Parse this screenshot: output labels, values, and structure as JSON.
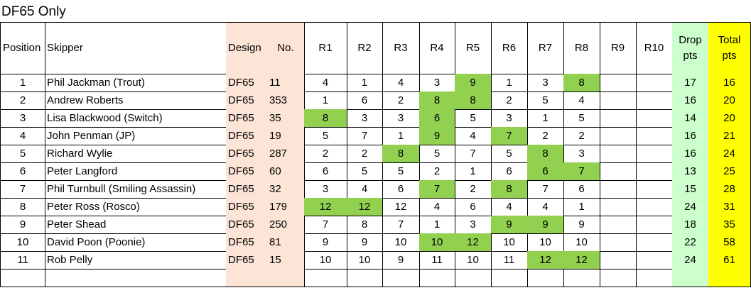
{
  "title": "DF65 Only",
  "table": {
    "header": [
      "Position",
      "Skipper",
      "Design",
      "No.",
      "R1",
      "R2",
      "R3",
      "R4",
      "R5",
      "R6",
      "R7",
      "R8",
      "R9",
      "R10",
      "Drop pts",
      "Total pts"
    ],
    "column_fills": [
      null,
      null,
      "#fce4d6",
      "#fce4d6",
      null,
      null,
      null,
      null,
      null,
      null,
      null,
      null,
      null,
      null,
      "#ccffcc",
      "#ffff00"
    ],
    "highlight_color": "#92d050",
    "rows": [
      [
        1,
        "Phil Jackman (Trout)",
        "DF65",
        11,
        4,
        1,
        4,
        3,
        9,
        1,
        3,
        8,
        null,
        null,
        17,
        16
      ],
      [
        2,
        "Andrew Roberts",
        "DF65",
        353,
        1,
        6,
        2,
        8,
        8,
        2,
        5,
        4,
        null,
        null,
        16,
        20
      ],
      [
        3,
        "Lisa Blackwood (Switch)",
        "DF65",
        35,
        8,
        3,
        3,
        6,
        5,
        3,
        1,
        5,
        null,
        null,
        14,
        20
      ],
      [
        4,
        "John Penman (JP)",
        "DF65",
        19,
        5,
        7,
        1,
        9,
        4,
        7,
        2,
        2,
        null,
        null,
        16,
        21
      ],
      [
        5,
        "Richard Wylie",
        "DF65",
        287,
        2,
        2,
        8,
        5,
        7,
        5,
        8,
        3,
        null,
        null,
        16,
        24
      ],
      [
        6,
        "Peter Langford",
        "DF65",
        60,
        6,
        5,
        5,
        2,
        1,
        6,
        6,
        7,
        null,
        null,
        13,
        25
      ],
      [
        7,
        "Phil Turnbull (Smiling Assassin)",
        "DF65",
        32,
        3,
        4,
        6,
        7,
        2,
        8,
        7,
        6,
        null,
        null,
        15,
        28
      ],
      [
        8,
        "Peter Ross (Rosco)",
        "DF65",
        179,
        12,
        12,
        12,
        4,
        6,
        4,
        4,
        1,
        null,
        null,
        24,
        31
      ],
      [
        9,
        "Peter Shead",
        "DF65",
        250,
        7,
        8,
        7,
        1,
        3,
        9,
        9,
        9,
        null,
        null,
        18,
        35
      ],
      [
        10,
        "David Poon (Poonie)",
        "DF65",
        81,
        9,
        9,
        10,
        10,
        12,
        10,
        10,
        10,
        null,
        null,
        22,
        58
      ],
      [
        11,
        "Rob Pelly",
        "DF65",
        15,
        10,
        10,
        9,
        11,
        10,
        11,
        12,
        12,
        null,
        null,
        24,
        61
      ]
    ],
    "highlighted": [
      [
        8,
        11
      ],
      [
        7,
        8
      ],
      [
        4,
        7
      ],
      [
        7,
        9
      ],
      [
        6,
        10
      ],
      [
        10,
        11
      ],
      [
        7,
        9
      ],
      [
        4,
        5
      ],
      [
        9,
        10
      ],
      [
        7,
        8
      ],
      [
        10,
        11
      ]
    ]
  }
}
